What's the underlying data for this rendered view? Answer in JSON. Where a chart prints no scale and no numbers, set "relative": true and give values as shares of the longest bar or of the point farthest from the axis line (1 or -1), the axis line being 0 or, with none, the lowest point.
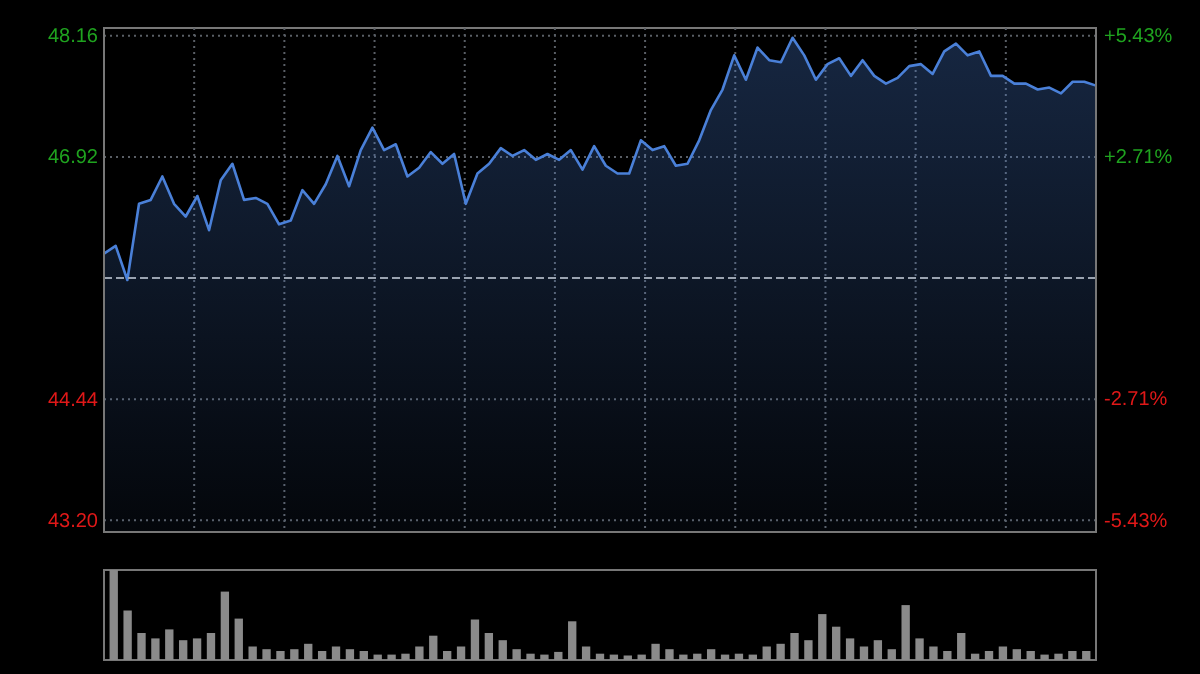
{
  "chart_data": [
    {
      "type": "area",
      "color": "#4a80d8",
      "categories": [
        null,
        null,
        null,
        null,
        null,
        null,
        null,
        null,
        null,
        null,
        null,
        null,
        null,
        null,
        null,
        null,
        null,
        null,
        null,
        null,
        null,
        null,
        null,
        null,
        null,
        null,
        null,
        null,
        null,
        null,
        null,
        null,
        null,
        null,
        null,
        null,
        null,
        null,
        null,
        null,
        null,
        null,
        null,
        null,
        null,
        null,
        null,
        null,
        null,
        null,
        null,
        null,
        null,
        null,
        null,
        null,
        null,
        null,
        null,
        null,
        null,
        null,
        null,
        null,
        null,
        null,
        null,
        null,
        null,
        null,
        null,
        null,
        null,
        null,
        null,
        null,
        null,
        null,
        null,
        null,
        null,
        null,
        null,
        null,
        null,
        null
      ],
      "values": [
        45.93,
        46.01,
        45.66,
        46.44,
        46.48,
        46.72,
        46.44,
        46.31,
        46.52,
        46.17,
        46.68,
        46.85,
        46.48,
        46.5,
        46.44,
        46.23,
        46.27,
        46.58,
        46.44,
        46.64,
        46.93,
        46.62,
        46.99,
        47.22,
        46.99,
        47.05,
        46.72,
        46.81,
        46.97,
        46.85,
        46.95,
        46.44,
        46.75,
        46.85,
        47.01,
        46.93,
        46.99,
        46.89,
        46.95,
        46.89,
        46.99,
        46.79,
        47.03,
        46.83,
        46.75,
        46.75,
        47.09,
        46.99,
        47.03,
        46.83,
        46.85,
        47.09,
        47.4,
        47.61,
        47.96,
        47.71,
        48.04,
        47.91,
        47.89,
        48.14,
        47.96,
        47.71,
        47.87,
        47.93,
        47.75,
        47.91,
        47.75,
        47.67,
        47.73,
        47.85,
        47.87,
        47.77,
        48,
        48.08,
        47.96,
        48,
        47.75,
        47.75,
        47.67,
        47.67,
        47.61,
        47.63,
        47.57,
        47.69,
        47.69,
        47.65
      ],
      "ylim": [
        43.08,
        48.24
      ],
      "yticks": [
        {
          "value": 43.2,
          "label": "43.20"
        },
        44.44,
        {
          "value": 45.68,
          "label": null
        },
        46.92,
        48.16
      ],
      "y2lim": [
        -5.69,
        5.6
      ],
      "y2ticks": [
        {
          "value": -5.43,
          "label": "-5.43%"
        },
        {
          "value": -2.71,
          "label": "-2.71%"
        },
        {
          "value": 2.71,
          "label": "+2.71%"
        },
        {
          "value": 5.43,
          "label": "+5.43%"
        }
      ],
      "ref_lines": [
        {
          "axis": "y",
          "value": 45.68,
          "color": "#9aa3b0",
          "line_style": "dashed"
        }
      ],
      "grid": true
    },
    {
      "type": "bar",
      "relative": true,
      "color": "#8a8a8a",
      "categories": [
        null,
        null,
        null,
        null,
        null,
        null,
        null,
        null,
        null,
        null,
        null,
        null,
        null,
        null,
        null,
        null,
        null,
        null,
        null,
        null,
        null,
        null,
        null,
        null,
        null,
        null,
        null,
        null,
        null,
        null,
        null,
        null,
        null,
        null,
        null,
        null,
        null,
        null,
        null,
        null,
        null,
        null,
        null,
        null,
        null,
        null,
        null,
        null,
        null,
        null,
        null,
        null,
        null,
        null,
        null,
        null,
        null,
        null,
        null,
        null,
        null,
        null,
        null,
        null,
        null,
        null,
        null,
        null,
        null,
        null,
        null
      ],
      "values": [
        1,
        0.55,
        0.3,
        0.24,
        0.34,
        0.22,
        0.24,
        0.3,
        0.76,
        0.46,
        0.15,
        0.12,
        0.1,
        0.12,
        0.18,
        0.1,
        0.15,
        0.12,
        0.1,
        0.06,
        0.06,
        0.07,
        0.15,
        0.27,
        0.1,
        0.15,
        0.45,
        0.3,
        0.22,
        0.12,
        0.07,
        0.06,
        0.09,
        0.43,
        0.15,
        0.07,
        0.06,
        0.05,
        0.06,
        0.18,
        0.12,
        0.06,
        0.07,
        0.12,
        0.06,
        0.07,
        0.06,
        0.15,
        0.18,
        0.3,
        0.22,
        0.51,
        0.37,
        0.24,
        0.15,
        0.22,
        0.12,
        0.61,
        0.24,
        0.15,
        0.1,
        0.3,
        0.07,
        0.1,
        0.15,
        0.12,
        0.1,
        0.06,
        0.07,
        0.1,
        0.1
      ]
    }
  ]
}
